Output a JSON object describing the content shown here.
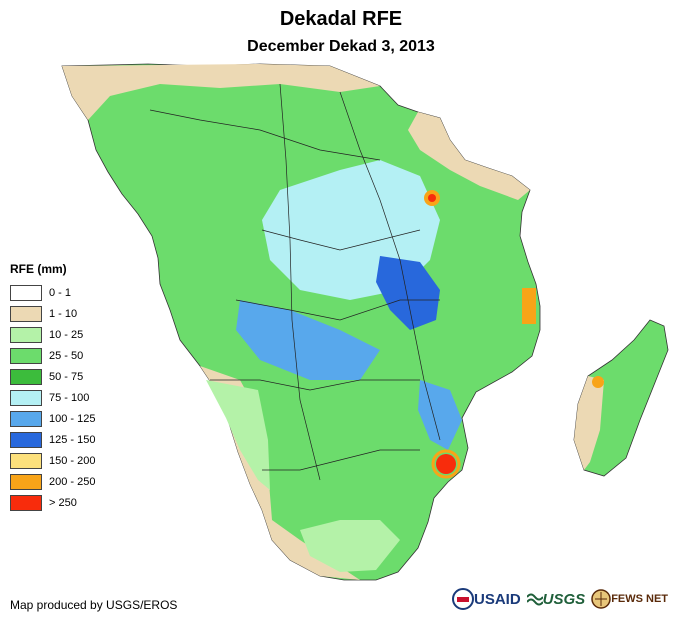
{
  "title": "Dekadal RFE",
  "subtitle": "December Dekad 3, 2013",
  "legend": {
    "title": "RFE (mm)",
    "items": [
      {
        "label": "0 - 1",
        "color": "#ffffff"
      },
      {
        "label": "1 - 10",
        "color": "#ecd9b4"
      },
      {
        "label": "10 - 25",
        "color": "#b4f2a8"
      },
      {
        "label": "25 - 50",
        "color": "#6cdc6c"
      },
      {
        "label": "50 - 75",
        "color": "#3cbc3c"
      },
      {
        "label": "75 - 100",
        "color": "#b4f0f4"
      },
      {
        "label": "100 - 125",
        "color": "#58a8ec"
      },
      {
        "label": "125 - 150",
        "color": "#2868dc"
      },
      {
        "label": "150 - 200",
        "color": "#fce07c"
      },
      {
        "label": "200 - 250",
        "color": "#f8a418"
      },
      {
        "label": "> 250",
        "color": "#f82c0c"
      }
    ]
  },
  "credit": "Map produced by USGS/EROS",
  "logos": {
    "usaid": "USAID",
    "usgs": "USGS",
    "fewsnet": "FEWS NET"
  }
}
